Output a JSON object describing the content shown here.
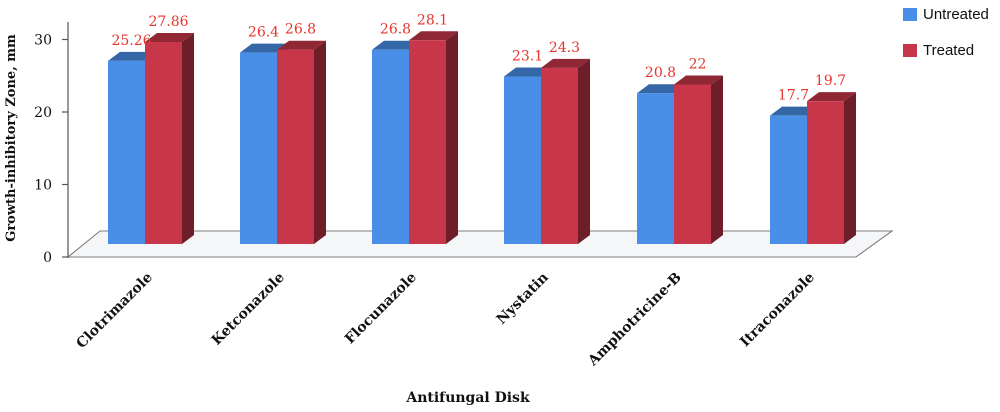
{
  "chart_data": {
    "type": "bar",
    "categories": [
      "Clotrimazole",
      "Ketconazole",
      "Flocunazole",
      "Nystatin",
      "Amphotricine-B",
      "Itraconazole"
    ],
    "series": [
      {
        "name": "Untreated",
        "values": [
          25.26,
          26.4,
          26.8,
          23.1,
          20.8,
          17.7
        ],
        "color": "#4a8fe7"
      },
      {
        "name": "Treated",
        "values": [
          27.86,
          26.8,
          28.1,
          24.3,
          22,
          19.7
        ],
        "color": "#c8364a"
      }
    ],
    "data_labels": [
      [
        "25.26",
        "26.4",
        "26.8",
        "23.1",
        "20.8",
        "17.7"
      ],
      [
        "27.86",
        "26.8",
        "28.1",
        "24.3",
        "22",
        "19.7"
      ]
    ],
    "yticks": [
      "0",
      "10",
      "20",
      "30"
    ],
    "ylim": [
      0,
      30
    ],
    "xlabel": "Antifungal Disk",
    "ylabel": "Growth-inhibitory Zone, mm",
    "legend_position": "top-right",
    "style": "3d-clustered-column",
    "label_color": "#e8342c"
  }
}
